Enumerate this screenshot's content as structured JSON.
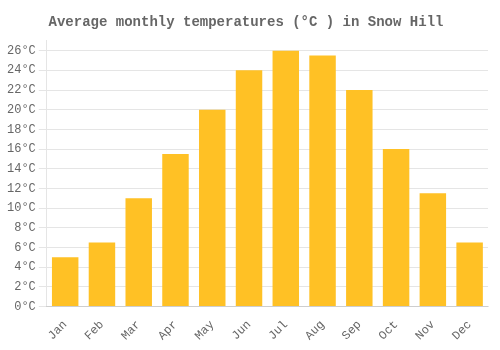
{
  "chart_data": {
    "type": "bar",
    "title": "Average monthly temperatures (°C ) in Snow Hill",
    "categories": [
      "Jan",
      "Feb",
      "Mar",
      "Apr",
      "May",
      "Jun",
      "Jul",
      "Aug",
      "Sep",
      "Oct",
      "Nov",
      "Dec"
    ],
    "values": [
      5.0,
      6.5,
      11.0,
      15.5,
      20.0,
      24.0,
      26.0,
      25.5,
      22.0,
      16.0,
      11.5,
      6.5
    ],
    "color": "#FFC125",
    "ylim": [
      0,
      27
    ],
    "yticks": [
      {
        "value": 0,
        "label": "0°C"
      },
      {
        "value": 2,
        "label": "2°C"
      },
      {
        "value": 4,
        "label": "4°C"
      },
      {
        "value": 6,
        "label": "6°C"
      },
      {
        "value": 8,
        "label": "8°C"
      },
      {
        "value": 10,
        "label": "10°C"
      },
      {
        "value": 12,
        "label": "12°C"
      },
      {
        "value": 14,
        "label": "14°C"
      },
      {
        "value": 16,
        "label": "16°C"
      },
      {
        "value": 18,
        "label": "18°C"
      },
      {
        "value": 20,
        "label": "20°C"
      },
      {
        "value": 22,
        "label": "22°C"
      },
      {
        "value": 24,
        "label": "24°C"
      },
      {
        "value": 26,
        "label": "26°C"
      }
    ],
    "grid": true
  }
}
